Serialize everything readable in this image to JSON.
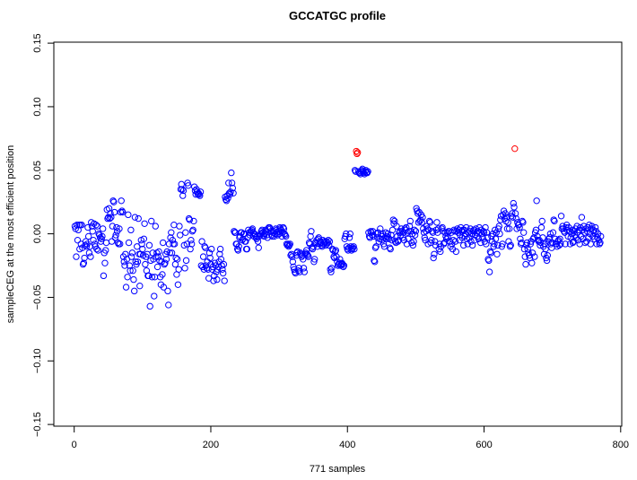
{
  "chart_data": {
    "type": "scatter",
    "title": "GCCATGC profile",
    "xlabel": "771 samples",
    "ylabel": "sampleCEG at the most efficient position",
    "xlim": [
      0,
      800
    ],
    "ylim": [
      -0.15,
      0.15
    ],
    "xticks": [
      "0",
      "200",
      "400",
      "600",
      "800"
    ],
    "xtick_values": [
      0,
      200,
      400,
      600,
      800
    ],
    "yticks": [
      "−0.15",
      "−0.10",
      "−0.05",
      "0.00",
      "0.05",
      "0.10",
      "0.15"
    ],
    "ytick_values": [
      -0.15,
      -0.1,
      -0.05,
      0.0,
      0.05,
      0.1,
      0.15
    ],
    "grid": false,
    "marker": "open-circle",
    "colors": {
      "default": "#0000ff",
      "highlight": "#ff0000"
    },
    "highlight_indices": [
      413,
      414,
      415,
      645
    ],
    "x_start": 1,
    "y": [
      0.006,
      0.004,
      -0.018,
      0.007,
      -0.005,
      0.003,
      0.007,
      -0.012,
      0.007,
      -0.008,
      0.007,
      -0.011,
      -0.024,
      -0.023,
      -0.019,
      -0.009,
      -0.006,
      -0.01,
      -0.008,
      0.005,
      -0.002,
      -0.015,
      -0.01,
      -0.018,
      0.009,
      0.006,
      0.002,
      -0.005,
      0.008,
      -0.008,
      -0.01,
      0.007,
      -0.012,
      0.006,
      -0.013,
      0.0,
      -0.001,
      -0.003,
      -0.006,
      -0.004,
      -0.002,
      0.004,
      -0.033,
      -0.015,
      -0.023,
      -0.013,
      -0.007,
      0.019,
      0.012,
      0.013,
      0.02,
      0.012,
      0.016,
      0.013,
      -0.006,
      0.006,
      0.026,
      0.025,
      0.017,
      -0.003,
      -0.001,
      0.005,
      0.002,
      -0.007,
      -0.008,
      0.004,
      -0.008,
      0.017,
      0.026,
      0.018,
      0.017,
      -0.018,
      -0.022,
      -0.025,
      -0.016,
      -0.042,
      -0.02,
      -0.034,
      0.015,
      -0.007,
      -0.025,
      -0.029,
      0.003,
      -0.018,
      -0.015,
      -0.029,
      -0.036,
      -0.045,
      0.013,
      -0.022,
      -0.024,
      -0.01,
      -0.022,
      0.012,
      -0.016,
      -0.041,
      -0.016,
      -0.005,
      -0.008,
      -0.012,
      -0.017,
      -0.004,
      0.008,
      -0.024,
      -0.018,
      -0.029,
      -0.016,
      -0.033,
      -0.033,
      -0.009,
      -0.057,
      -0.021,
      0.01,
      -0.034,
      -0.015,
      -0.02,
      -0.049,
      -0.034,
      0.006,
      -0.018,
      -0.015,
      -0.026,
      -0.018,
      -0.014,
      -0.021,
      -0.034,
      -0.04,
      -0.022,
      -0.032,
      -0.007,
      -0.042,
      -0.024,
      -0.023,
      -0.016,
      -0.02,
      -0.014,
      -0.045,
      -0.056,
      -0.008,
      -0.015,
      -0.003,
      0.001,
      -0.015,
      -0.005,
      -0.008,
      0.007,
      -0.008,
      -0.024,
      -0.019,
      -0.032,
      -0.02,
      -0.04,
      -0.028,
      0.006,
      -0.001,
      0.035,
      0.039,
      0.035,
      0.03,
      0.034,
      -0.009,
      -0.027,
      0.001,
      -0.021,
      -0.008,
      0.04,
      0.038,
      0.012,
      0.011,
      -0.012,
      -0.005,
      -0.008,
      0.002,
      0.003,
      0.01,
      0.037,
      0.034,
      0.031,
      0.035,
      0.033,
      0.031,
      0.032,
      0.031,
      0.03,
      0.033,
      -0.025,
      -0.006,
      -0.026,
      -0.018,
      -0.028,
      -0.01,
      -0.011,
      -0.025,
      -0.027,
      -0.022,
      -0.028,
      -0.035,
      -0.015,
      -0.019,
      -0.024,
      -0.012,
      -0.028,
      -0.026,
      -0.037,
      -0.033,
      -0.023,
      -0.025,
      -0.03,
      -0.036,
      -0.028,
      -0.026,
      -0.022,
      -0.016,
      -0.012,
      -0.02,
      -0.025,
      -0.028,
      -0.031,
      -0.024,
      -0.037,
      0.029,
      0.027,
      0.026,
      0.03,
      0.028,
      0.04,
      0.032,
      0.031,
      0.033,
      0.048,
      0.04,
      0.036,
      0.032,
      0.002,
      0.001,
      0.001,
      -0.008,
      -0.008,
      -0.012,
      -0.013,
      -0.01,
      -0.003,
      -0.002,
      0.001,
      0.001,
      -0.005,
      -0.004,
      0.0,
      0.0,
      -0.006,
      -0.006,
      -0.012,
      -0.012,
      -0.003,
      0.003,
      0.001,
      -0.001,
      0.001,
      0.002,
      0.003,
      0.004,
      0.001,
      -0.002,
      0.0,
      -0.001,
      -0.003,
      -0.004,
      -0.002,
      -0.006,
      -0.011,
      -0.002,
      -0.001,
      0.0,
      0.002,
      0.003,
      0.001,
      -0.001,
      -0.002,
      0.0,
      0.003,
      0.002,
      -0.001,
      -0.003,
      0.004,
      0.005,
      0.005,
      0.004,
      0.002,
      -0.001,
      -0.002,
      0.001,
      0.002,
      -0.002,
      0.0,
      0.004,
      0.003,
      0.001,
      -0.001,
      0.002,
      0.0,
      0.005,
      0.004,
      0.003,
      -0.002,
      0.001,
      0.005,
      0.004,
      0.0,
      -0.001,
      -0.002,
      -0.008,
      -0.009,
      -0.008,
      -0.01,
      -0.009,
      -0.008,
      -0.017,
      -0.016,
      -0.018,
      -0.022,
      -0.026,
      -0.028,
      -0.03,
      -0.031,
      -0.017,
      -0.015,
      -0.014,
      -0.029,
      -0.027,
      -0.03,
      -0.015,
      -0.016,
      -0.018,
      -0.017,
      -0.02,
      -0.027,
      -0.03,
      -0.016,
      -0.015,
      -0.013,
      -0.016,
      -0.017,
      -0.018,
      -0.007,
      -0.008,
      -0.002,
      0.002,
      -0.011,
      -0.012,
      -0.01,
      -0.022,
      -0.02,
      -0.007,
      -0.008,
      -0.005,
      -0.01,
      -0.004,
      -0.003,
      -0.008,
      -0.006,
      -0.007,
      -0.009,
      -0.01,
      -0.005,
      -0.008,
      -0.006,
      -0.007,
      -0.009,
      -0.006,
      -0.008,
      -0.007,
      -0.005,
      -0.009,
      -0.006,
      -0.028,
      -0.03,
      -0.027,
      -0.012,
      -0.013,
      -0.018,
      -0.019,
      -0.014,
      -0.013,
      -0.018,
      -0.022,
      -0.025,
      -0.024,
      -0.023,
      -0.02,
      -0.025,
      -0.024,
      -0.023,
      -0.024,
      -0.026,
      -0.025,
      -0.004,
      -0.002,
      0.0,
      -0.01,
      -0.012,
      -0.013,
      -0.011,
      -0.003,
      0.0,
      -0.01,
      -0.013,
      -0.012,
      -0.011,
      -0.01,
      -0.012,
      0.05,
      0.049,
      0.065,
      0.063,
      0.064,
      0.049,
      0.048,
      0.048,
      0.047,
      0.049,
      0.05,
      0.051,
      0.049,
      0.048,
      0.047,
      0.049,
      0.05,
      0.048,
      0.048,
      0.049,
      0.001,
      -0.002,
      -0.003,
      0.002,
      0.001,
      -0.001,
      0.002,
      -0.002,
      -0.021,
      -0.022,
      -0.011,
      -0.01,
      0.0,
      -0.003,
      0.001,
      -0.006,
      -0.004,
      0.004,
      0.0,
      -0.002,
      -0.005,
      0.0,
      -0.008,
      -0.01,
      -0.003,
      0.001,
      -0.004,
      -0.002,
      0.0,
      -0.003,
      -0.004,
      -0.011,
      -0.012,
      -0.001,
      -0.005,
      0.003,
      0.011,
      0.008,
      0.01,
      -0.006,
      -0.007,
      0.006,
      -0.002,
      -0.006,
      -0.005,
      0.001,
      0.002,
      -0.001,
      0.004,
      0.002,
      -0.003,
      0.001,
      -0.005,
      0.004,
      0.003,
      0.005,
      -0.008,
      0.001,
      -0.004,
      0.002,
      0.006,
      0.01,
      0.002,
      -0.007,
      0.0,
      -0.009,
      -0.006,
      0.003,
      -0.001,
      0.002,
      0.02,
      0.018,
      0.016,
      0.009,
      0.017,
      0.01,
      0.011,
      0.015,
      0.009,
      0.013,
      0.004,
      0.001,
      -0.003,
      -0.005,
      0.002,
      0.006,
      0.004,
      -0.008,
      0.003,
      0.01,
      0.009,
      -0.007,
      -0.005,
      0.002,
      0.001,
      -0.019,
      -0.016,
      -0.006,
      -0.009,
      0.003,
      0.009,
      0.001,
      0.004,
      -0.012,
      -0.008,
      -0.014,
      -0.01,
      0.004,
      0.005,
      0.002,
      -0.008,
      -0.007,
      0.001,
      -0.002,
      -0.004,
      0.001,
      -0.003,
      0.002,
      0.002,
      -0.006,
      -0.01,
      0.001,
      -0.008,
      -0.012,
      -0.005,
      0.003,
      0.002,
      -0.006,
      -0.014,
      0.002,
      0.004,
      0.001,
      0.003,
      -0.005,
      -0.001,
      0.005,
      0.002,
      -0.003,
      0.003,
      -0.009,
      0.003,
      -0.002,
      0.0,
      0.005,
      -0.004,
      -0.008,
      0.001,
      -0.003,
      0.002,
      0.004,
      -0.006,
      0.0,
      -0.009,
      0.002,
      0.003,
      -0.005,
      -0.001,
      0.004,
      0.001,
      -0.002,
      0.002,
      -0.004,
      0.005,
      0.001,
      -0.007,
      0.003,
      0.0,
      -0.003,
      0.002,
      0.001,
      -0.006,
      0.005,
      -0.008,
      0.001,
      -0.003,
      -0.02,
      -0.021,
      -0.03,
      -0.014,
      -0.015,
      -0.002,
      -0.006,
      0.0,
      -0.01,
      -0.008,
      0.003,
      -0.004,
      0.001,
      -0.016,
      -0.009,
      0.004,
      0.006,
      0.0,
      0.011,
      0.014,
      -0.01,
      -0.008,
      0.015,
      0.018,
      0.012,
      0.016,
      0.01,
      0.013,
      0.004,
      0.009,
      -0.006,
      0.004,
      -0.01,
      -0.009,
      0.014,
      0.016,
      0.013,
      0.024,
      0.021,
      0.067,
      0.016,
      0.012,
      0.004,
      0.009,
      0.007,
      0.007,
      0.005,
      -0.004,
      -0.008,
      -0.007,
      0.01,
      0.009,
      0.001,
      -0.012,
      -0.018,
      -0.024,
      -0.009,
      -0.007,
      -0.012,
      -0.015,
      -0.017,
      -0.019,
      -0.008,
      -0.006,
      -0.023,
      -0.015,
      -0.004,
      -0.003,
      -0.018,
      0.001,
      0.003,
      0.026,
      -0.002,
      -0.005,
      -0.006,
      -0.005,
      -0.009,
      -0.007,
      0.005,
      0.01,
      -0.003,
      -0.01,
      -0.016,
      -0.008,
      -0.012,
      -0.019,
      -0.021,
      -0.017,
      -0.006,
      -0.004,
      -0.003,
      0.0,
      -0.008,
      -0.011,
      -0.007,
      0.001,
      0.011,
      0.01,
      -0.004,
      -0.008,
      -0.008,
      -0.01,
      -0.006,
      -0.005,
      -0.009,
      -0.004,
      -0.008,
      0.014,
      0.004,
      0.006,
      0.004,
      0.002,
      0.001,
      -0.008,
      0.005,
      0.007,
      0.003,
      -0.002,
      0.005,
      0.002,
      -0.008,
      -0.003,
      0.0,
      0.003,
      -0.007,
      -0.006,
      0.002,
      -0.001,
      0.004,
      -0.003,
      0.006,
      0.001,
      -0.005,
      0.003,
      -0.008,
      0.005,
      -0.002,
      0.013,
      0.003,
      -0.004,
      0.006,
      0.001,
      -0.007,
      0.004,
      -0.006,
      0.002,
      0.005,
      -0.003,
      0.007,
      0.0,
      -0.008,
      0.004,
      0.006,
      -0.002,
      0.003,
      0.001,
      -0.004,
      0.005,
      0.002,
      -0.008,
      -0.003,
      0.0,
      -0.005,
      -0.008,
      -0.007,
      -0.002
    ]
  }
}
